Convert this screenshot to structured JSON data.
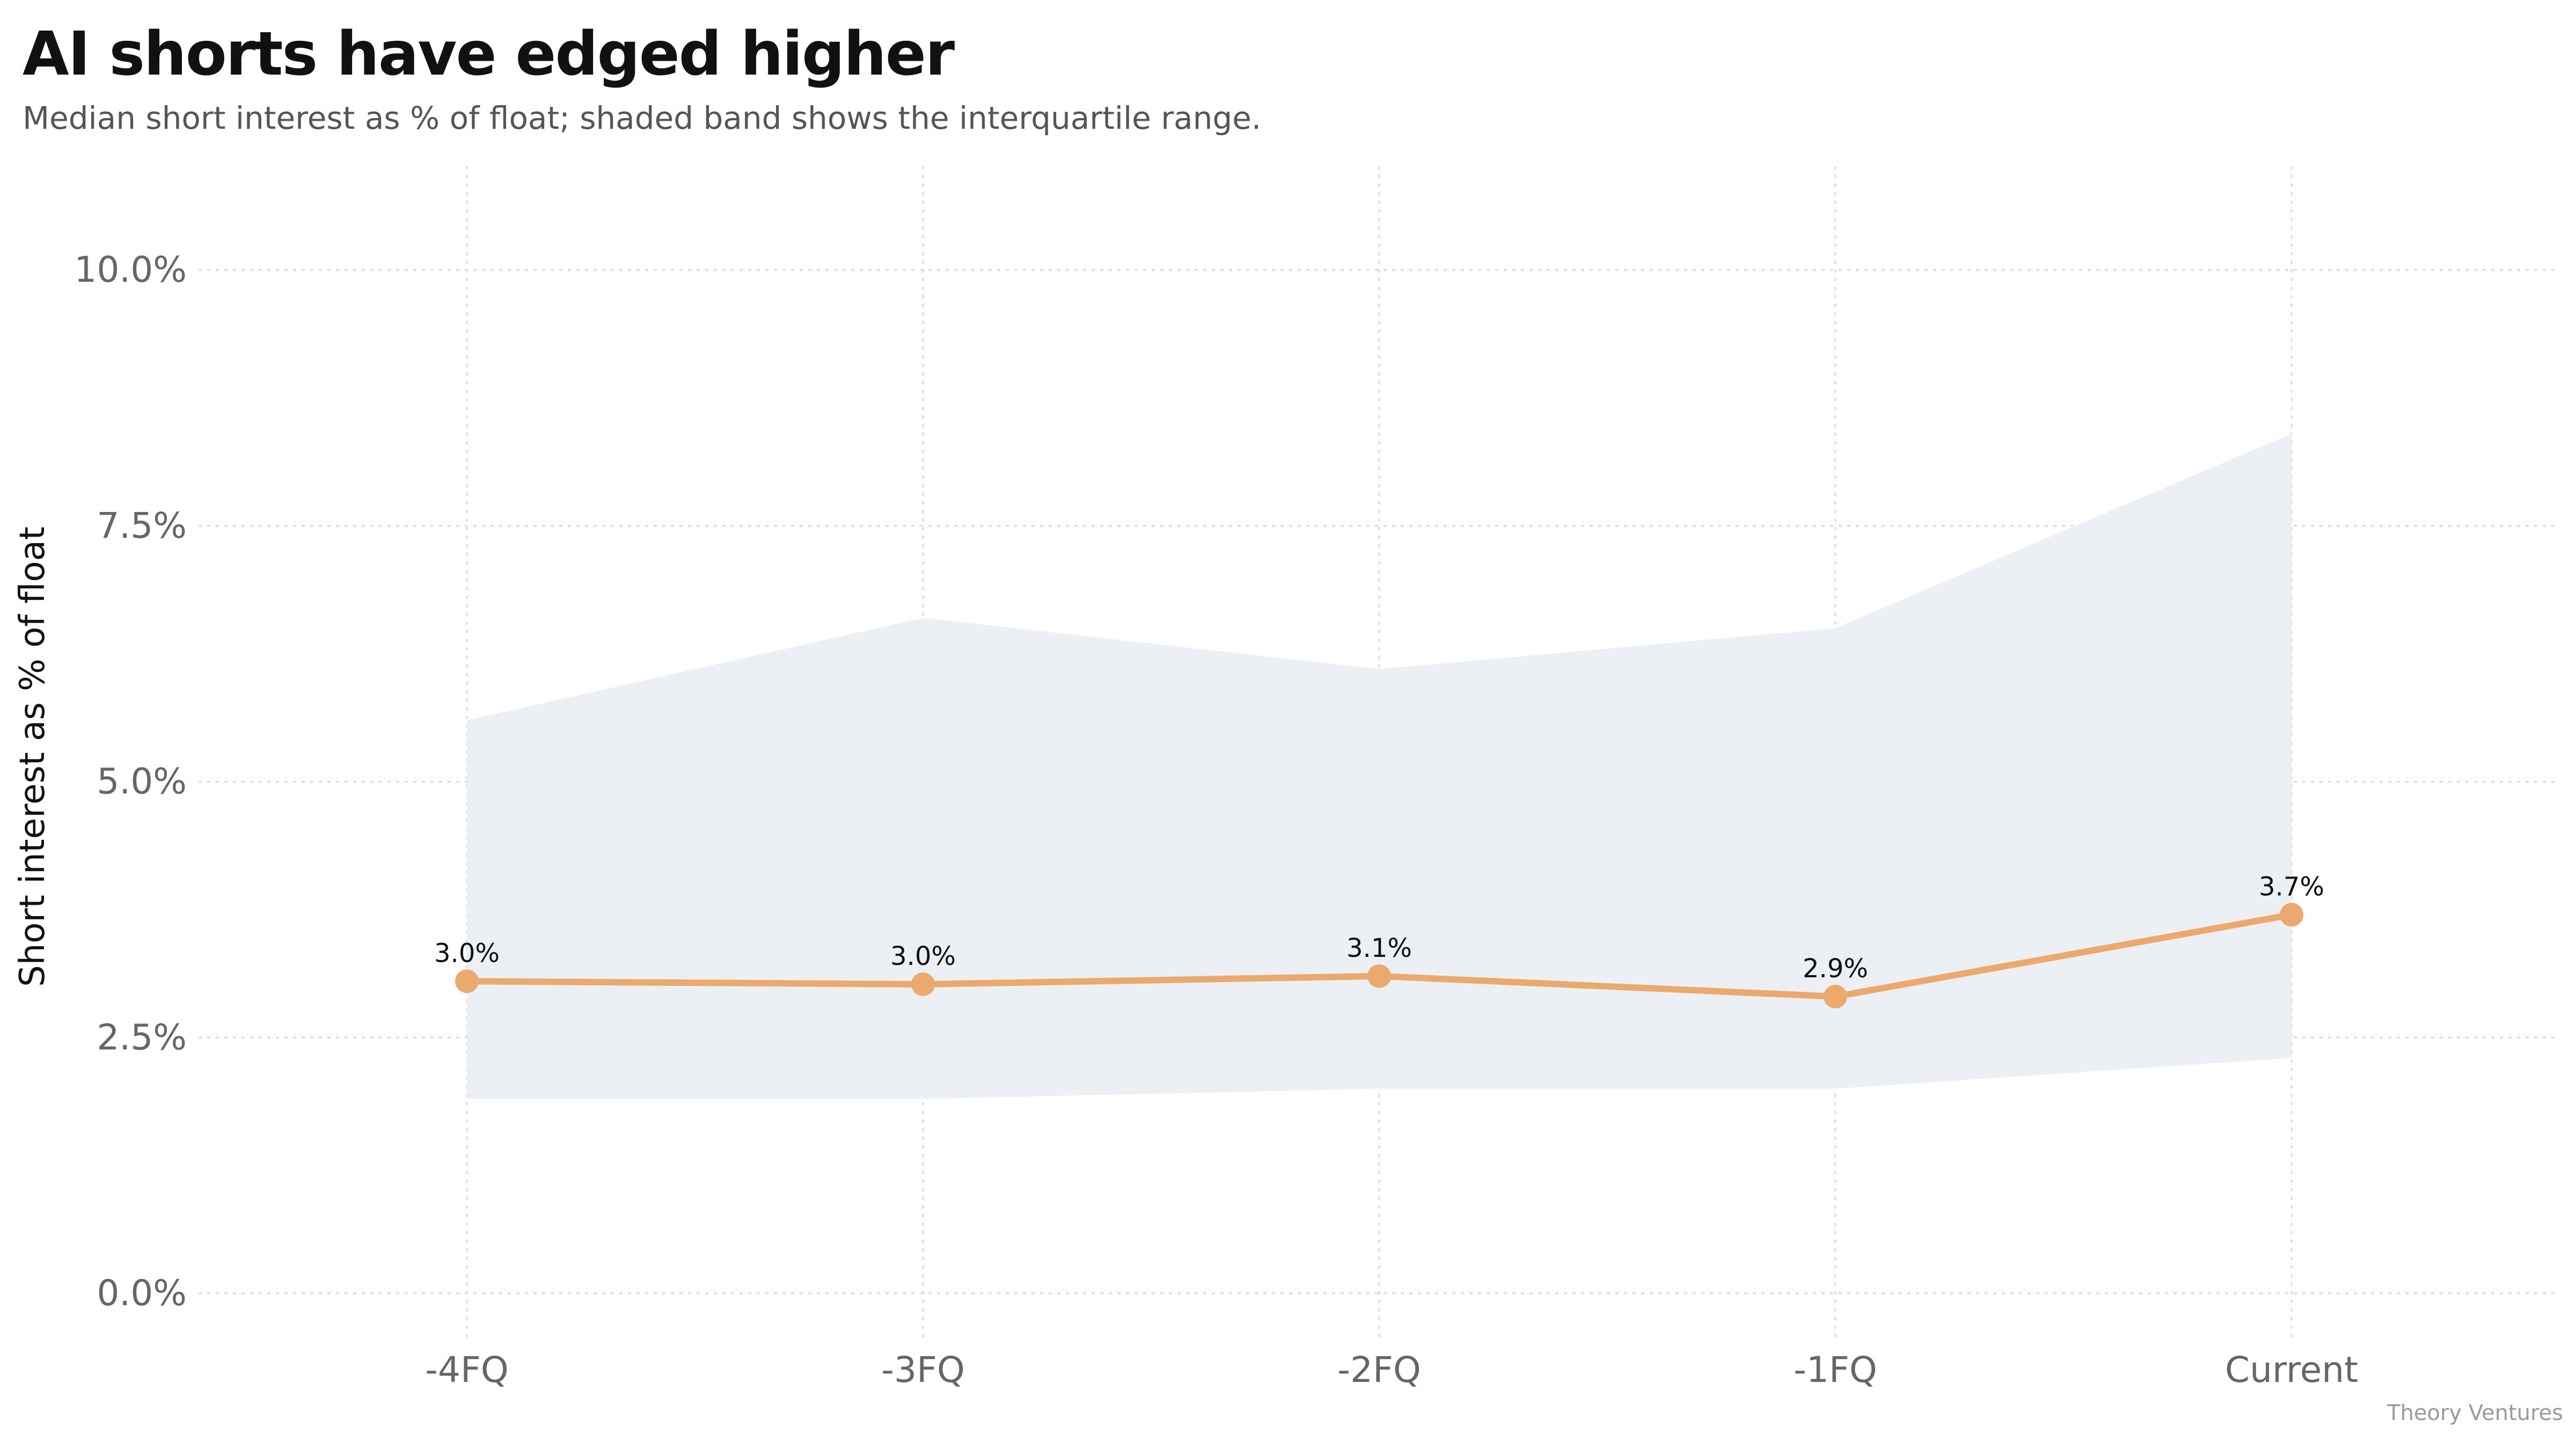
{
  "title": "AI shorts have edged higher",
  "subtitle": "Median short interest as % of float; shaded band shows the interquartile range.",
  "credit": "Theory Ventures",
  "colors": {
    "line": "#EBA96E",
    "band": "#ECEFF3",
    "grid": "#D9D9D9",
    "tick_text": "#666666"
  },
  "chart_data": {
    "type": "line",
    "categories": [
      "-4FQ",
      "-3FQ",
      "-2FQ",
      "-1FQ",
      "Current"
    ],
    "series": [
      {
        "values": [
          3.05,
          3.02,
          3.1,
          2.9,
          3.7
        ]
      }
    ],
    "data_labels": [
      "3.0%",
      "3.0%",
      "3.1%",
      "2.9%",
      "3.7%"
    ],
    "band": {
      "upper": [
        5.6,
        6.6,
        6.1,
        6.5,
        8.4
      ],
      "lower": [
        1.9,
        1.9,
        2.0,
        2.0,
        2.3
      ]
    },
    "ylabel": "Short interest as % of float",
    "xlabel": "",
    "ylim": [
      0,
      10
    ],
    "yticks": [
      0,
      2.5,
      5,
      7.5,
      10
    ],
    "ytick_labels": [
      "0.0%",
      "2.5%",
      "5.0%",
      "7.5%",
      "10.0%"
    ],
    "grid": true
  }
}
